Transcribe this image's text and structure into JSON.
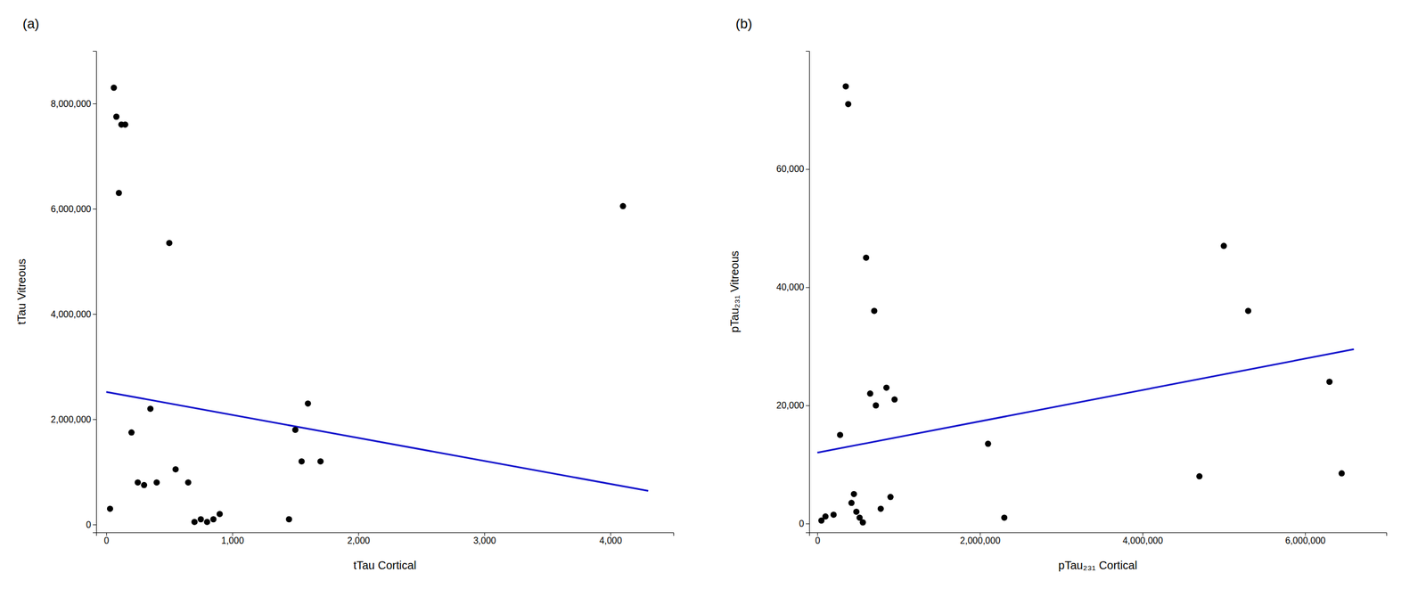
{
  "chart_data": [
    {
      "type": "scatter",
      "title": "(a)",
      "x_label": "tTau Cortical",
      "y_label": "tTau Vitreous",
      "grid": false,
      "series": [
        {
          "type": "scatter",
          "color": "#000000",
          "x": [
            30,
            60,
            80,
            100,
            120,
            150,
            200,
            250,
            300,
            350,
            400,
            500,
            550,
            650,
            700,
            750,
            800,
            850,
            900,
            1450,
            1500,
            1550,
            1600,
            1700,
            4100
          ],
          "values": [
            300000,
            8300000,
            7750000,
            6300000,
            7600000,
            7600000,
            1750000,
            800000,
            750000,
            2200000,
            800000,
            5350000,
            1050000,
            800000,
            50000,
            100000,
            50000,
            100000,
            200000,
            100000,
            1800000,
            1200000,
            2300000,
            1200000,
            6050000
          ]
        },
        {
          "type": "line",
          "color": "#1414cc",
          "x": [
            0,
            4300
          ],
          "values": [
            2520000,
            640000
          ]
        }
      ],
      "xlim": [
        -80,
        4500
      ],
      "ylim": [
        -150000,
        9000000
      ],
      "xticks": [
        0,
        {
          "value": 1000,
          "label": "1,000"
        },
        {
          "value": 2000,
          "label": "2,000"
        },
        {
          "value": 3000,
          "label": "3,000"
        },
        {
          "value": 4000,
          "label": "4,000"
        }
      ],
      "yticks": [
        0,
        {
          "value": 2000000,
          "label": "2,000,000"
        },
        {
          "value": 4000000,
          "label": "4,000,000"
        },
        {
          "value": 6000000,
          "label": "6,000,000"
        },
        {
          "value": 8000000,
          "label": "8,000,000"
        }
      ]
    },
    {
      "type": "scatter",
      "title": "(b)",
      "x_label": "pTau₂₃₁ Cortical",
      "y_label": "pTau₂₃₁ Vitreous",
      "grid": false,
      "series": [
        {
          "type": "scatter",
          "color": "#000000",
          "x": [
            50000,
            100000,
            200000,
            280000,
            350000,
            380000,
            420000,
            450000,
            480000,
            520000,
            560000,
            600000,
            650000,
            700000,
            720000,
            780000,
            850000,
            900000,
            950000,
            2100000,
            2300000,
            4700000,
            5000000,
            5300000,
            6300000,
            6450000
          ],
          "values": [
            500,
            1200,
            1500,
            15000,
            74000,
            71000,
            3500,
            5000,
            2000,
            1000,
            200,
            45000,
            22000,
            36000,
            20000,
            2500,
            23000,
            4500,
            21000,
            13500,
            1000,
            8000,
            47000,
            36000,
            24000,
            8500
          ]
        },
        {
          "type": "line",
          "color": "#1414cc",
          "x": [
            0,
            6600000
          ],
          "values": [
            12000,
            29500
          ]
        }
      ],
      "xlim": [
        -100000,
        7000000
      ],
      "ylim": [
        -1500,
        80000
      ],
      "xticks": [
        0,
        {
          "value": 2000000,
          "label": "2,000,000"
        },
        {
          "value": 4000000,
          "label": "4,000,000"
        },
        {
          "value": 6000000,
          "label": "6,000,000"
        }
      ],
      "yticks": [
        0,
        {
          "value": 20000,
          "label": "20,000"
        },
        {
          "value": 40000,
          "label": "40,000"
        },
        {
          "value": 60000,
          "label": "60,000"
        }
      ]
    }
  ]
}
